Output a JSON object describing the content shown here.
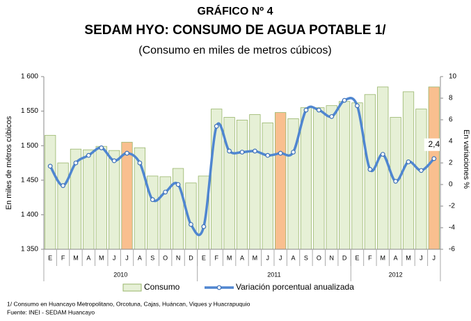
{
  "chart_data": {
    "type": "bar_line",
    "title": "GRÁFICO Nº 4",
    "subtitle_main": "SEDAM HYO: CONSUMO DE AGUA POTABLE 1/",
    "subtitle": "(Consumo en miles de metros cúbicos)",
    "ylabel": "En miles de métros cúbicos",
    "y2label": "En variaciones %",
    "categories": [
      "E",
      "F",
      "M",
      "A",
      "M",
      "J",
      "J",
      "A",
      "S",
      "O",
      "N",
      "D",
      "E",
      "F",
      "M",
      "A",
      "M",
      "J",
      "J",
      "A",
      "S",
      "O",
      "N",
      "D",
      "E",
      "F",
      "M",
      "A",
      "M",
      "J",
      "J"
    ],
    "groups": [
      {
        "label": "2010",
        "count": 12
      },
      {
        "label": "2011",
        "count": 12
      },
      {
        "label": "2012",
        "count": 7
      }
    ],
    "series": [
      {
        "name": "Consumo",
        "type": "bar",
        "color": "#e6f0d6",
        "edge": "#98b56a",
        "colors": [
          "#e6f0d6",
          "#e6f0d6",
          "#e6f0d6",
          "#e6f0d6",
          "#e6f0d6",
          "#e6f0d6",
          "#f9bf8f",
          "#e6f0d6",
          "#e6f0d6",
          "#e6f0d6",
          "#e6f0d6",
          "#e6f0d6",
          "#e6f0d6",
          "#e6f0d6",
          "#e6f0d6",
          "#e6f0d6",
          "#e6f0d6",
          "#e6f0d6",
          "#f9bf8f",
          "#e6f0d6",
          "#e6f0d6",
          "#e6f0d6",
          "#e6f0d6",
          "#e6f0d6",
          "#e6f0d6",
          "#e6f0d6",
          "#e6f0d6",
          "#e6f0d6",
          "#e6f0d6",
          "#e6f0d6",
          "#f9bf8f"
        ],
        "values": [
          1515,
          1475,
          1495,
          1494,
          1499,
          1493,
          1505,
          1497,
          1456,
          1455,
          1467,
          1446,
          1456,
          1553,
          1541,
          1537,
          1545,
          1533,
          1548,
          1539,
          1555,
          1555,
          1558,
          1564,
          1562,
          1574,
          1585,
          1541,
          1578,
          1553,
          1585
        ]
      },
      {
        "name": "Variación porcentual anualizada",
        "type": "line",
        "axis": "y2",
        "color": "#4f86d0",
        "values": [
          1.7,
          -0.1,
          2.0,
          2.7,
          3.4,
          2.2,
          2.9,
          2.0,
          -1.4,
          -0.7,
          0.0,
          -3.7,
          -3.9,
          5.4,
          3.1,
          3.0,
          3.1,
          2.7,
          2.9,
          3.0,
          6.9,
          6.9,
          6.3,
          7.8,
          7.3,
          1.4,
          2.8,
          0.3,
          2.1,
          1.3,
          2.4
        ],
        "value_labels": [
          null,
          null,
          null,
          null,
          null,
          null,
          null,
          null,
          null,
          null,
          null,
          null,
          null,
          null,
          null,
          null,
          null,
          null,
          null,
          null,
          null,
          null,
          null,
          null,
          null,
          null,
          null,
          null,
          null,
          null,
          "2,4"
        ]
      }
    ],
    "ylim": [
      1350,
      1600
    ],
    "yticks": [
      {
        "value": 1350,
        "label": "1 350"
      },
      {
        "value": 1400,
        "label": "1 400"
      },
      {
        "value": 1450,
        "label": "1 450"
      },
      {
        "value": 1500,
        "label": "1 500"
      },
      {
        "value": 1550,
        "label": "1 550"
      },
      {
        "value": 1600,
        "label": "1 600"
      }
    ],
    "y2lim": [
      -6,
      10
    ],
    "y2ticks": [
      -6,
      -4,
      -2,
      0,
      2,
      4,
      6,
      8,
      10
    ],
    "grid": false,
    "legend": "bottom",
    "footnotes": [
      "1/ Consumo en Huancayo Metropolitano, Orcotuna, Cajas, Huáncan, Viques y Huacrapuquio",
      "Fuente: INEI - SEDAM Huancayo"
    ]
  }
}
